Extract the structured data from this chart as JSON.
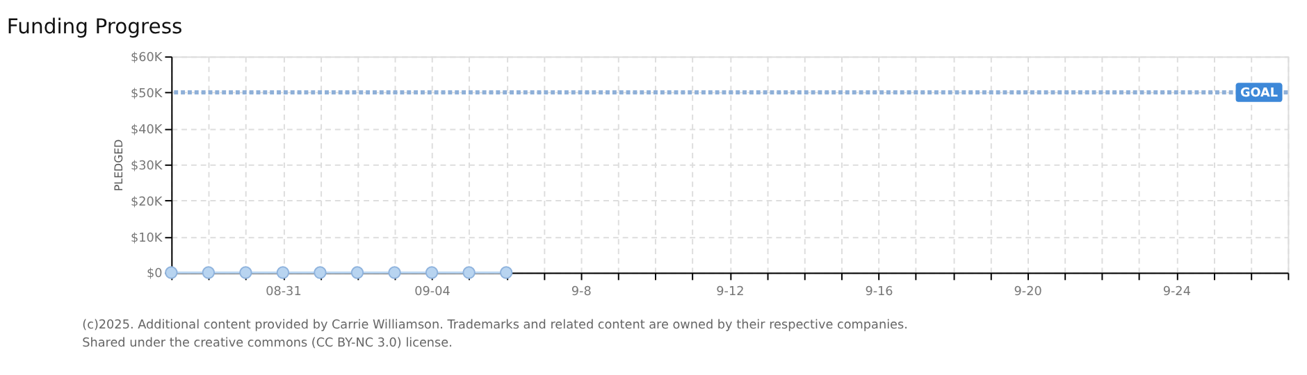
{
  "chart_data": {
    "type": "line",
    "title": "Funding Progress",
    "ylabel": "PLEDGED",
    "x": [
      "2025-08-28",
      "2025-08-29",
      "2025-08-30",
      "2025-08-31",
      "2025-09-01",
      "2025-09-02",
      "2025-09-03",
      "2025-09-04",
      "2025-09-05",
      "2025-09-06"
    ],
    "series": [
      {
        "color": "#b8d4f0",
        "values": [
          0,
          0,
          0,
          0,
          0,
          0,
          0,
          0,
          0,
          0
        ]
      }
    ],
    "marker": "circle",
    "xlim": [
      "2025-08-28",
      "2025-09-27"
    ],
    "xticks": [
      {
        "value": "2025-08-28",
        "label": null
      },
      {
        "value": "2025-08-29",
        "label": null
      },
      {
        "value": "2025-08-30",
        "label": null
      },
      {
        "value": "2025-08-31",
        "label": "08-31"
      },
      {
        "value": "2025-09-01",
        "label": null
      },
      {
        "value": "2025-09-02",
        "label": null
      },
      {
        "value": "2025-09-03",
        "label": null
      },
      {
        "value": "2025-09-04",
        "label": "09-04"
      },
      {
        "value": "2025-09-05",
        "label": null
      },
      {
        "value": "2025-09-06",
        "label": null
      },
      {
        "value": "2025-09-07",
        "label": null
      },
      {
        "value": "2025-09-08",
        "label": "9-8"
      },
      {
        "value": "2025-09-09",
        "label": null
      },
      {
        "value": "2025-09-10",
        "label": null
      },
      {
        "value": "2025-09-11",
        "label": null
      },
      {
        "value": "2025-09-12",
        "label": "9-12"
      },
      {
        "value": "2025-09-13",
        "label": null
      },
      {
        "value": "2025-09-14",
        "label": null
      },
      {
        "value": "2025-09-15",
        "label": null
      },
      {
        "value": "2025-09-16",
        "label": "9-16"
      },
      {
        "value": "2025-09-17",
        "label": null
      },
      {
        "value": "2025-09-18",
        "label": null
      },
      {
        "value": "2025-09-19",
        "label": null
      },
      {
        "value": "2025-09-20",
        "label": "9-20"
      },
      {
        "value": "2025-09-21",
        "label": null
      },
      {
        "value": "2025-09-22",
        "label": null
      },
      {
        "value": "2025-09-23",
        "label": null
      },
      {
        "value": "2025-09-24",
        "label": "9-24"
      },
      {
        "value": "2025-09-25",
        "label": null
      },
      {
        "value": "2025-09-26",
        "label": null
      },
      {
        "value": "2025-09-27",
        "label": null
      }
    ],
    "ylim": [
      0,
      60000
    ],
    "yticks": [
      {
        "value": 0,
        "label": "$0"
      },
      {
        "value": 10000,
        "label": "$10K"
      },
      {
        "value": 20000,
        "label": "$20K"
      },
      {
        "value": 30000,
        "label": "$30K"
      },
      {
        "value": 40000,
        "label": "$40K"
      },
      {
        "value": 50000,
        "label": "$50K"
      },
      {
        "value": 60000,
        "label": "$60K"
      }
    ],
    "grid": true,
    "ref_lines": [
      {
        "axis": "y",
        "value": 50000,
        "label": "GOAL",
        "color": "#8fb0d8",
        "line_style": "dotted"
      }
    ],
    "annotations": [
      "(c)2025. Additional content provided by Carrie Williamson. Trademarks and related content are owned by their respective companies.",
      "Shared under the creative commons (CC BY-NC 3.0) license."
    ]
  }
}
